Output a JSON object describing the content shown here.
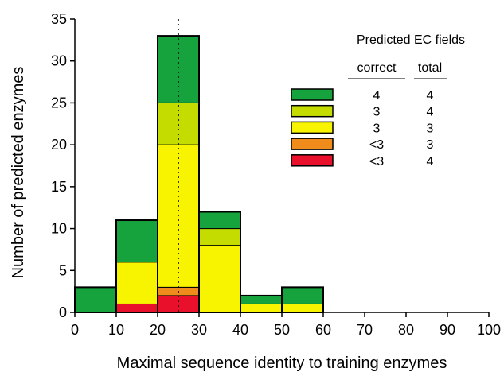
{
  "chart_data": {
    "type": "bar",
    "stacked": true,
    "title": "",
    "xlabel": "Maximal sequence identity to training enzymes",
    "ylabel": "Number of predicted enzymes",
    "xlim": [
      0,
      100
    ],
    "ylim": [
      0,
      35
    ],
    "xticks": [
      "0",
      "10",
      "20",
      "30",
      "40",
      "50",
      "60",
      "70",
      "80",
      "90",
      "100"
    ],
    "yticks": [
      "0",
      "5",
      "10",
      "15",
      "20",
      "25",
      "30",
      "35"
    ],
    "bins": [
      {
        "start": 0,
        "end": 10
      },
      {
        "start": 10,
        "end": 20
      },
      {
        "start": 20,
        "end": 30
      },
      {
        "start": 30,
        "end": 40
      },
      {
        "start": 40,
        "end": 50
      },
      {
        "start": 50,
        "end": 60
      }
    ],
    "series": [
      {
        "correct": "<3",
        "total": "4",
        "color": "#e8102a",
        "values": [
          0,
          1,
          2,
          0,
          0,
          0
        ]
      },
      {
        "correct": "<3",
        "total": "3",
        "color": "#f08c1c",
        "values": [
          0,
          0,
          1,
          0,
          0,
          0
        ]
      },
      {
        "correct": "3",
        "total": "3",
        "color": "#f8f400",
        "values": [
          0,
          5,
          17,
          8,
          1,
          1
        ]
      },
      {
        "correct": "3",
        "total": "4",
        "color": "#c4dc00",
        "values": [
          0,
          0,
          5,
          2,
          0,
          0
        ]
      },
      {
        "correct": "4",
        "total": "4",
        "color": "#16a23c",
        "values": [
          3,
          5,
          8,
          2,
          1,
          2
        ]
      }
    ],
    "reference_line": {
      "x": 25,
      "style": "dotted"
    },
    "grid": false,
    "legend": {
      "title": "Predicted EC fields",
      "col_correct": "correct",
      "col_total": "total",
      "order": [
        4,
        3,
        2,
        1,
        0
      ],
      "placement": "top-right"
    }
  }
}
